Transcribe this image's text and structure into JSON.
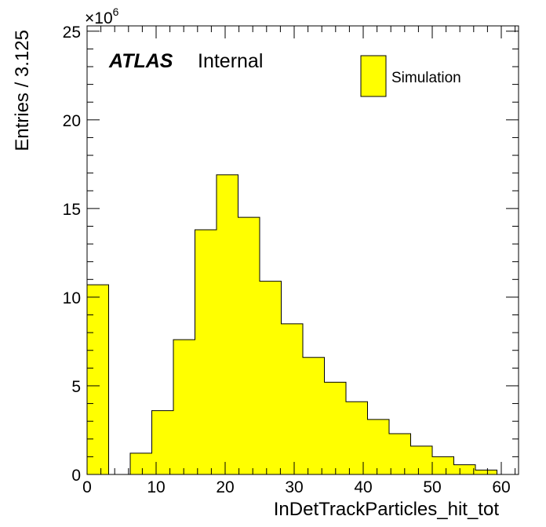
{
  "chart_data": {
    "type": "bar",
    "histogram": true,
    "bin_width": 3.125,
    "x": [
      1.5625,
      4.6875,
      7.8125,
      10.9375,
      14.0625,
      17.1875,
      20.3125,
      23.4375,
      26.5625,
      29.6875,
      32.8125,
      35.9375,
      39.0625,
      42.1875,
      45.3125,
      48.4375,
      51.5625,
      54.6875,
      57.8125
    ],
    "series": [
      {
        "name": "Simulation",
        "color": "#ffff00",
        "values": [
          10.7,
          0.0,
          1.2,
          3.6,
          7.6,
          13.8,
          16.9,
          14.5,
          10.9,
          8.5,
          6.6,
          5.2,
          4.1,
          3.1,
          2.3,
          1.6,
          1.0,
          0.55,
          0.25
        ]
      }
    ],
    "xlabel": "InDetTrackParticles_hit_tot",
    "ylabel": "Entries / 3.125",
    "y_multiplier_label": "×10",
    "y_multiplier_exponent": "6",
    "xlim": [
      0,
      62.5
    ],
    "ylim": [
      0,
      25.3
    ],
    "x_ticks": [
      0,
      10,
      20,
      30,
      40,
      50,
      60
    ],
    "x_tick_labels": [
      "0",
      "10",
      "20",
      "30",
      "40",
      "50",
      "60"
    ],
    "y_ticks": [
      0,
      5,
      10,
      15,
      20,
      25
    ],
    "y_tick_labels": [
      "0",
      "5",
      "10",
      "15",
      "20",
      "25"
    ],
    "legend_placement": "top-right",
    "grid": false,
    "annotations": {
      "atlas": "ATLAS",
      "internal": "Internal"
    }
  }
}
